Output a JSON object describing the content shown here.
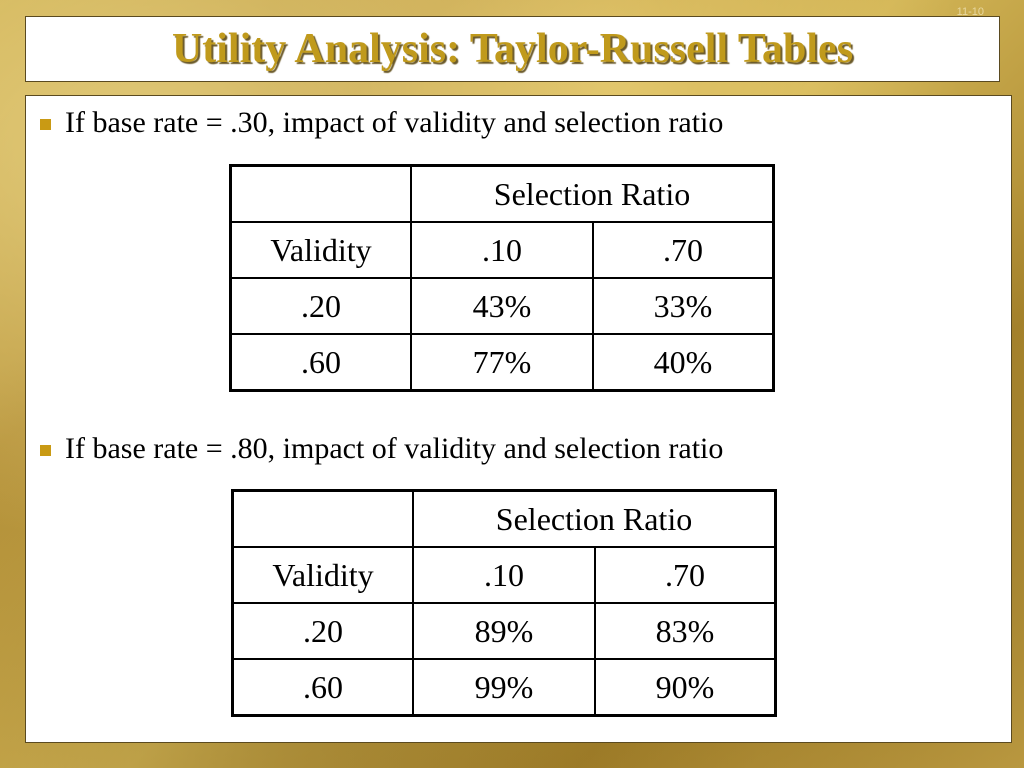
{
  "slide": {
    "title": "Utility Analysis: Taylor-Russell Tables",
    "slide_number": "11-10"
  },
  "colors": {
    "title": "#c09a1c",
    "bullet": "#c99a14",
    "background": "#c9a94a"
  },
  "sections": [
    {
      "bullet": "If base rate = .30, impact of validity and selection ratio",
      "table": {
        "header": "Selection Ratio",
        "columns": [
          "Validity",
          ".10",
          ".70"
        ],
        "rows": [
          [
            ".20",
            "43%",
            "33%"
          ],
          [
            ".60",
            "77%",
            "40%"
          ]
        ]
      }
    },
    {
      "bullet": "If base rate = .80, impact of validity and selection ratio",
      "table": {
        "header": "Selection Ratio",
        "columns": [
          "Validity",
          ".10",
          ".70"
        ],
        "rows": [
          [
            ".20",
            "89%",
            "83%"
          ],
          [
            ".60",
            "99%",
            "90%"
          ]
        ]
      }
    }
  ]
}
